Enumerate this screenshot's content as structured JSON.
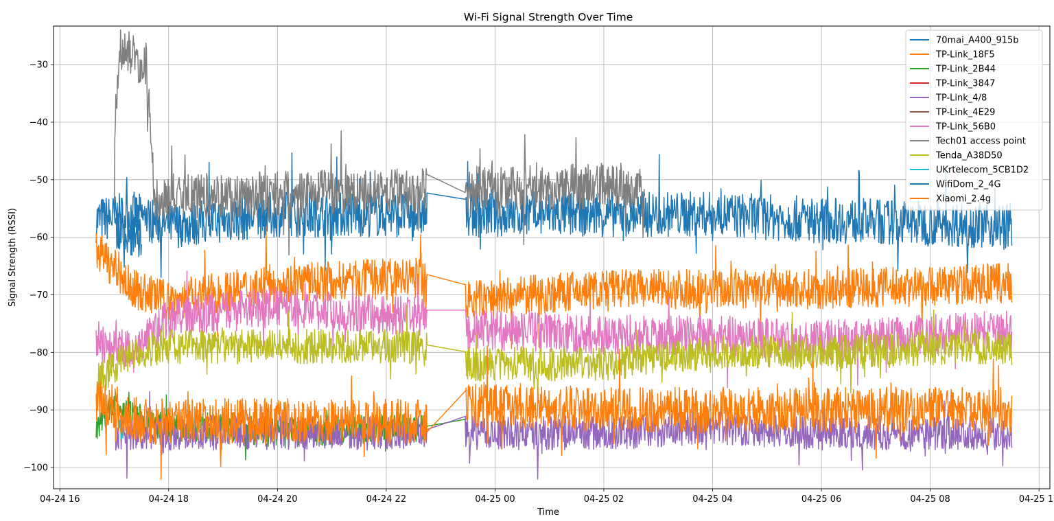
{
  "chart_data": {
    "type": "line",
    "title": "Wi-Fi Signal Strength Over Time",
    "xlabel": "Time",
    "ylabel": "Signal Strength (RSSI)",
    "xlim": [
      "2024-04-24 15:53",
      "2024-04-25 10:12"
    ],
    "ylim": [
      -103.7,
      -23.3
    ],
    "x_ticks": [
      "04-24 16",
      "04-24 18",
      "04-24 20",
      "04-24 22",
      "04-25 00",
      "04-25 02",
      "04-25 04",
      "04-25 06",
      "04-25 08",
      "04-25 10"
    ],
    "y_ticks": [
      -30,
      -40,
      -50,
      -60,
      -70,
      -80,
      -90,
      -100
    ],
    "grid": true,
    "legend_position": "top-right",
    "data_gap": [
      "2024-04-24 22:45",
      "2024-04-24 23:27"
    ],
    "series": [
      {
        "name": "70mai_A400_915b",
        "color": "#1f77b4",
        "x": [
          "04-24 16:40",
          "04-24 17:20",
          "04-24 18:00",
          "04-24 20:00",
          "04-24 22:40",
          "04-24 23:30",
          "04-25 02:00",
          "04-25 04:00",
          "04-25 06:00",
          "04-25 09:30"
        ],
        "y": [
          -57,
          -56,
          -58,
          -56,
          -56,
          -56,
          -56,
          -56,
          -57,
          -58
        ]
      },
      {
        "name": "TP-Link_18F5",
        "color": "#ff7f0e",
        "x": [
          "04-24 16:40",
          "04-24 17:20",
          "04-24 18:00",
          "04-24 20:00",
          "04-24 22:40",
          "04-24 23:30",
          "04-25 02:00",
          "04-25 04:00",
          "04-25 06:00",
          "04-25 09:30"
        ],
        "y": [
          -62,
          -69,
          -71,
          -68,
          -67,
          -71,
          -69,
          -69,
          -69,
          -68
        ]
      },
      {
        "name": "TP-Link_2B44",
        "color": "#2ca02c",
        "x": [
          "04-24 16:40",
          "04-24 17:00",
          "04-24 17:30",
          "04-24 18:00",
          "04-24 19:00",
          "04-24 20:00",
          "04-24 22:40",
          "04-24 23:30"
        ],
        "y": [
          -93,
          -89,
          -92,
          -93,
          -93,
          -94,
          -93,
          -93
        ]
      },
      {
        "name": "TP-Link_3847",
        "color": "#d62728",
        "x": [],
        "y": []
      },
      {
        "name": "TP-Link_4/8",
        "color": "#9467bd",
        "x": [
          "04-24 17:00",
          "04-24 19:00",
          "04-24 22:40",
          "04-24 23:30",
          "04-25 02:00",
          "04-25 04:00",
          "04-25 06:00",
          "04-25 09:30"
        ],
        "y": [
          -94,
          -94,
          -94,
          -94,
          -94,
          -93,
          -94,
          -94
        ]
      },
      {
        "name": "TP-Link_4E29",
        "color": "#8c564b",
        "x": [],
        "y": []
      },
      {
        "name": "TP-Link_56B0",
        "color": "#e377c2",
        "x": [
          "04-24 16:40",
          "04-24 17:20",
          "04-24 18:00",
          "04-24 20:00",
          "04-24 22:40",
          "04-24 23:30",
          "04-25 02:00",
          "04-25 04:00",
          "04-25 06:00",
          "04-25 09:30"
        ],
        "y": [
          -78,
          -80,
          -74,
          -72,
          -74,
          -76,
          -77,
          -77,
          -78,
          -76
        ]
      },
      {
        "name": "Tech01 access point",
        "color": "#7f7f7f",
        "x": [
          "04-24 17:00",
          "04-24 17:05",
          "04-24 17:35",
          "04-24 17:45",
          "04-24 18:00",
          "04-25 02:35",
          "04-25 02:45"
        ],
        "y": [
          -45,
          -27,
          -30,
          -53,
          -53,
          -51,
          -53
        ]
      },
      {
        "name": "Tenda_A38D50",
        "color": "#bcbd22",
        "x": [
          "04-24 16:40",
          "04-24 17:20",
          "04-24 18:00",
          "04-24 20:00",
          "04-24 22:40",
          "04-24 23:30",
          "04-25 02:00",
          "04-25 04:00",
          "04-25 06:00",
          "04-25 09:30"
        ],
        "y": [
          -85,
          -80,
          -79,
          -79,
          -79,
          -82,
          -82,
          -80,
          -80,
          -79
        ]
      },
      {
        "name": "UKrtelecom_5CB1D2",
        "color": "#17becf",
        "x": [
          "04-24 17:05",
          "04-24 17:10"
        ],
        "y": [
          -92,
          -95
        ]
      },
      {
        "name": "WifiDom_2_4G",
        "color": "#1f77b4",
        "x": [
          "04-24 17:00",
          "04-24 17:30"
        ],
        "y": [
          -58,
          -60
        ]
      },
      {
        "name": "Xiaomi_2.4g",
        "color": "#ff7f0e",
        "x": [
          "04-24 16:40",
          "04-24 17:30",
          "04-24 19:00",
          "04-24 20:00",
          "04-24 22:40",
          "04-24 23:30",
          "04-25 02:00",
          "04-25 04:00",
          "04-25 06:00",
          "04-25 09:30"
        ],
        "y": [
          -88,
          -92,
          -92,
          -92,
          -92,
          -89,
          -90,
          -90,
          -90,
          -90
        ]
      }
    ]
  }
}
